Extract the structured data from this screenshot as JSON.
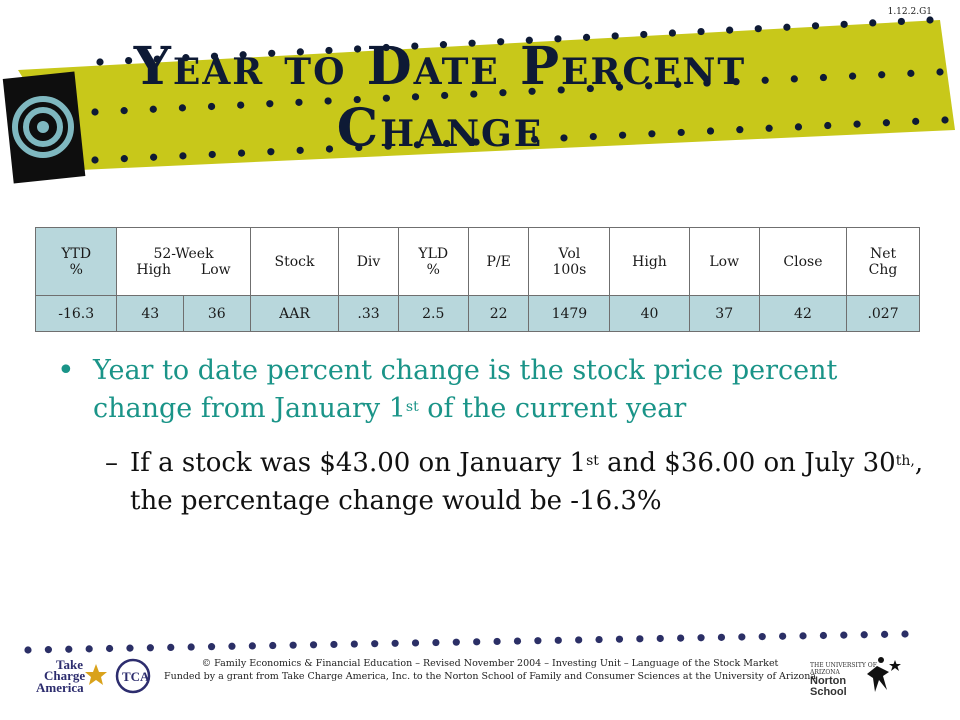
{
  "slide_code": "1.12.2.G1",
  "title": "Year to Date Percent Change",
  "table": {
    "headers": [
      {
        "top": "YTD",
        "bottom": "%"
      },
      {
        "top": "52-Week",
        "sub": [
          "High",
          "Low"
        ]
      },
      {
        "top": "Stock",
        "bottom": ""
      },
      {
        "top": "Div",
        "bottom": ""
      },
      {
        "top": "YLD",
        "bottom": "%"
      },
      {
        "top": "P/E",
        "bottom": ""
      },
      {
        "top": "Vol",
        "bottom": "100s"
      },
      {
        "top": "High",
        "bottom": ""
      },
      {
        "top": "Low",
        "bottom": ""
      },
      {
        "top": "Close",
        "bottom": ""
      },
      {
        "top": "Net",
        "bottom": "Chg"
      }
    ],
    "row": [
      "-16.3",
      "43",
      "36",
      "AAR",
      ".33",
      "2.5",
      "22",
      "1479",
      "40",
      "37",
      "42",
      ".027"
    ]
  },
  "bullet1": {
    "a": "Year to date percent change is the stock price percent change from January 1",
    "sup": "st",
    "b": " of the current year"
  },
  "bullet2": {
    "a": "If a stock was $43.00 on January 1",
    "sup1": "st",
    "b": " and $36.00 on July 30",
    "sup2": "th,",
    "c": ", the percentage change would be -16.3%"
  },
  "footer": {
    "line1": "© Family Economics & Financial Education – Revised November 2004 – Investing Unit – Language of the Stock Market",
    "line2": "Funded by a grant from Take Charge America, Inc. to the Norton School of Family and Consumer Sciences at the University of Arizona"
  },
  "logos": {
    "left_a": "Take",
    "left_b": "Charge",
    "left_c": "America",
    "left_d": "TCA",
    "right_a": "THE UNIVERSITY OF ARIZONA",
    "right_b": "Norton School"
  },
  "colors": {
    "banner": "#c8c81a",
    "title": "#0e1a35",
    "teal_text": "#1a9488",
    "table_fill": "#b8d7dc",
    "dots": "#2b2f66"
  }
}
